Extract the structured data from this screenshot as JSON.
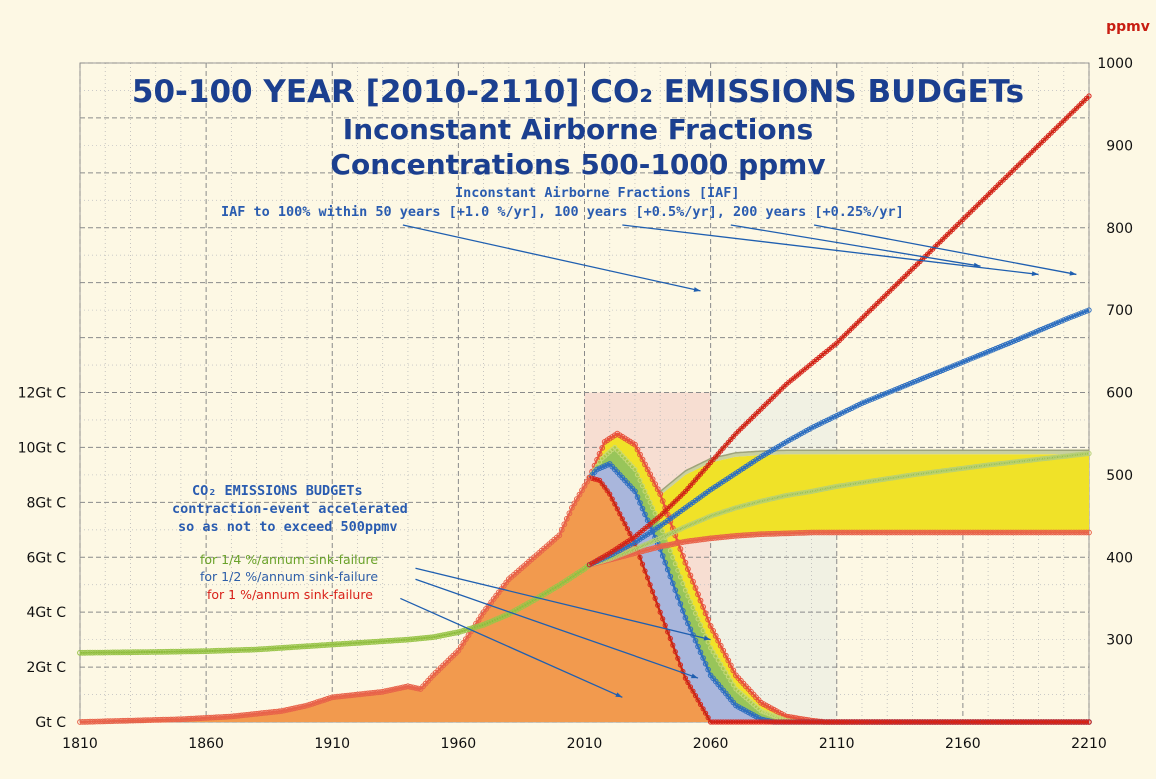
{
  "title": {
    "line1": "50-100 YEAR [2010-2110] CO₂ EMISSIONS BUDGETs",
    "line2": "Inconstant Airborne Fractions",
    "line3": "Concentrations 500-1000 ppmv"
  },
  "iaf_note": {
    "line1": "Inconstant Airborne Fractions [IAF]",
    "line2": "IAF to 100% within 50 years [+1.0 %/yr], 100 years [+0.5%/yr], 200 years [+0.25%/yr]"
  },
  "budget_note": {
    "line1": "CO₂ EMISSIONS BUDGETs",
    "line2": "contraction-event accelerated",
    "line3": "so as not to exceed 500ppmv"
  },
  "sink_labels": {
    "quarter": "for 1/4 %/annum sink-failure",
    "half": "for 1/2 %/annum sink-failure",
    "one": "for 1 %/annum sink-failure"
  },
  "colors": {
    "background": "#fdf8e4",
    "title": "#1b3f8f",
    "emissions_fill": "#f29a4e",
    "red": "#d9221a",
    "blue": "#2e6fc0",
    "green": "#8ab83a",
    "yellow": "#f0e228",
    "grey_band": "#c9d0a0",
    "lavender": "#a9b6dc"
  },
  "chart_data": {
    "type": "area",
    "x_ticks": [
      1810,
      1860,
      1910,
      1960,
      2010,
      2060,
      2110,
      2160,
      2210
    ],
    "xlim": [
      1810,
      2210
    ],
    "left_axis": {
      "ticks": [
        "Gt C",
        "2Gt C",
        "4Gt C",
        "6Gt C",
        "8Gt C",
        "10Gt C",
        "12Gt C"
      ],
      "tick_values": [
        0,
        2,
        4,
        6,
        8,
        10,
        12
      ],
      "ylim": [
        0,
        24
      ]
    },
    "right_axis": {
      "unit": "ppmv",
      "ticks": [
        "300",
        "400",
        "500",
        "600",
        "700",
        "800",
        "900",
        "1000"
      ],
      "tick_values": [
        300,
        400,
        500,
        600,
        700,
        800,
        900,
        1000
      ],
      "ylim": [
        200,
        1000
      ]
    },
    "grid": true,
    "series": [
      {
        "key": "ppm_hist",
        "axis": "right",
        "x": [
          1810,
          1840,
          1860,
          1880,
          1900,
          1920,
          1940,
          1950,
          1960,
          1970,
          1980,
          1990,
          2000,
          2010,
          2012
        ],
        "y": [
          284,
          285,
          286,
          288,
          292,
          296,
          300,
          303,
          309,
          318,
          331,
          348,
          366,
          386,
          391
        ]
      },
      {
        "key": "ppm_1pct",
        "axis": "right",
        "x": [
          2012,
          2020,
          2030,
          2040,
          2050,
          2060,
          2070,
          2080,
          2090,
          2100,
          2110,
          2120,
          2140,
          2160,
          2180,
          2200,
          2210
        ],
        "y": [
          391,
          405,
          425,
          450,
          480,
          515,
          550,
          580,
          610,
          635,
          660,
          690,
          750,
          810,
          870,
          930,
          960
        ]
      },
      {
        "key": "ppm_halfpct",
        "axis": "right",
        "x": [
          2012,
          2020,
          2030,
          2040,
          2050,
          2060,
          2070,
          2080,
          2090,
          2100,
          2110,
          2120,
          2140,
          2160,
          2180,
          2200,
          2210
        ],
        "y": [
          391,
          402,
          418,
          438,
          460,
          482,
          502,
          522,
          540,
          557,
          572,
          587,
          612,
          637,
          662,
          688,
          700
        ]
      },
      {
        "key": "ppm_quarterpct",
        "axis": "right",
        "x": [
          2012,
          2020,
          2030,
          2040,
          2050,
          2060,
          2070,
          2080,
          2090,
          2100,
          2110,
          2140,
          2170,
          2210
        ],
        "y": [
          391,
          398,
          410,
          423,
          437,
          450,
          460,
          468,
          475,
          480,
          486,
          500,
          512,
          526
        ]
      },
      {
        "key": "ppm_upper_band",
        "axis": "right",
        "x": [
          2012,
          2020,
          2030,
          2040,
          2050,
          2060,
          2070,
          2080,
          2090,
          2100,
          2110,
          2140,
          2170,
          2210
        ],
        "y": [
          391,
          410,
          440,
          475,
          500,
          515,
          522,
          524,
          525,
          525,
          525,
          525,
          525,
          525
        ]
      },
      {
        "key": "ppm_500_cap",
        "axis": "right",
        "x": [
          2012,
          2020,
          2030,
          2040,
          2050,
          2060,
          2070,
          2080,
          2090,
          2100,
          2110,
          2140,
          2170,
          2210
        ],
        "y": [
          391,
          397,
          405,
          413,
          419,
          423,
          426,
          428,
          429,
          430,
          430,
          430,
          430,
          430
        ]
      },
      {
        "key": "emis_hist",
        "axis": "left",
        "x": [
          1810,
          1850,
          1870,
          1890,
          1900,
          1910,
          1920,
          1930,
          1940,
          1945,
          1950,
          1960,
          1970,
          1980,
          1990,
          2000,
          2005,
          2010,
          2012
        ],
        "y": [
          0.0,
          0.1,
          0.2,
          0.4,
          0.6,
          0.9,
          1.0,
          1.1,
          1.3,
          1.2,
          1.7,
          2.6,
          4.0,
          5.2,
          6.0,
          6.8,
          7.8,
          8.6,
          8.9
        ]
      },
      {
        "key": "emis_1pct",
        "axis": "left",
        "x": [
          2012,
          2016,
          2020,
          2030,
          2040,
          2050,
          2060,
          2210
        ],
        "y": [
          8.9,
          8.8,
          8.3,
          6.5,
          4.0,
          1.6,
          0.0,
          0.0
        ]
      },
      {
        "key": "emis_halfpct",
        "axis": "left",
        "x": [
          2012,
          2015,
          2020,
          2030,
          2040,
          2050,
          2060,
          2070,
          2080,
          2085,
          2210
        ],
        "y": [
          8.9,
          9.2,
          9.4,
          8.4,
          6.3,
          3.8,
          1.7,
          0.6,
          0.1,
          0.0,
          0.0
        ]
      },
      {
        "key": "emis_quarterpct",
        "axis": "left",
        "x": [
          2012,
          2017,
          2022,
          2030,
          2040,
          2050,
          2060,
          2070,
          2080,
          2090,
          2095,
          2210
        ],
        "y": [
          8.9,
          9.6,
          10.0,
          9.2,
          7.2,
          4.8,
          2.7,
          1.2,
          0.4,
          0.05,
          0.0,
          0.0
        ]
      },
      {
        "key": "emis_outer",
        "axis": "left",
        "x": [
          2012,
          2018,
          2023,
          2030,
          2040,
          2050,
          2060,
          2070,
          2080,
          2090,
          2100,
          2105,
          2210
        ],
        "y": [
          8.9,
          10.2,
          10.5,
          10.1,
          8.3,
          5.8,
          3.5,
          1.7,
          0.7,
          0.2,
          0.05,
          0.0,
          0.0
        ]
      }
    ],
    "shaded_regions": [
      {
        "x": [
          2010,
          2060
        ],
        "color": "pink"
      },
      {
        "x": [
          2060,
          2110
        ],
        "color": "pale-grey"
      }
    ],
    "annotation_arrows": [
      {
        "from": [
          1938,
          18.1
        ],
        "to": [
          2056,
          15.7
        ]
      },
      {
        "from": [
          2025,
          18.1
        ],
        "to": [
          2190,
          16.3
        ]
      },
      {
        "from": [
          2101,
          18.1
        ],
        "to": [
          2205,
          16.3
        ]
      },
      {
        "from": [
          2068,
          18.1
        ],
        "to": [
          2167,
          16.6
        ]
      },
      {
        "from": [
          1943,
          5.6
        ],
        "to": [
          2060,
          3.0
        ]
      },
      {
        "from": [
          1943,
          5.2
        ],
        "to": [
          2055,
          1.6
        ]
      },
      {
        "from": [
          1937,
          4.5
        ],
        "to": [
          2025,
          0.9
        ]
      }
    ]
  }
}
